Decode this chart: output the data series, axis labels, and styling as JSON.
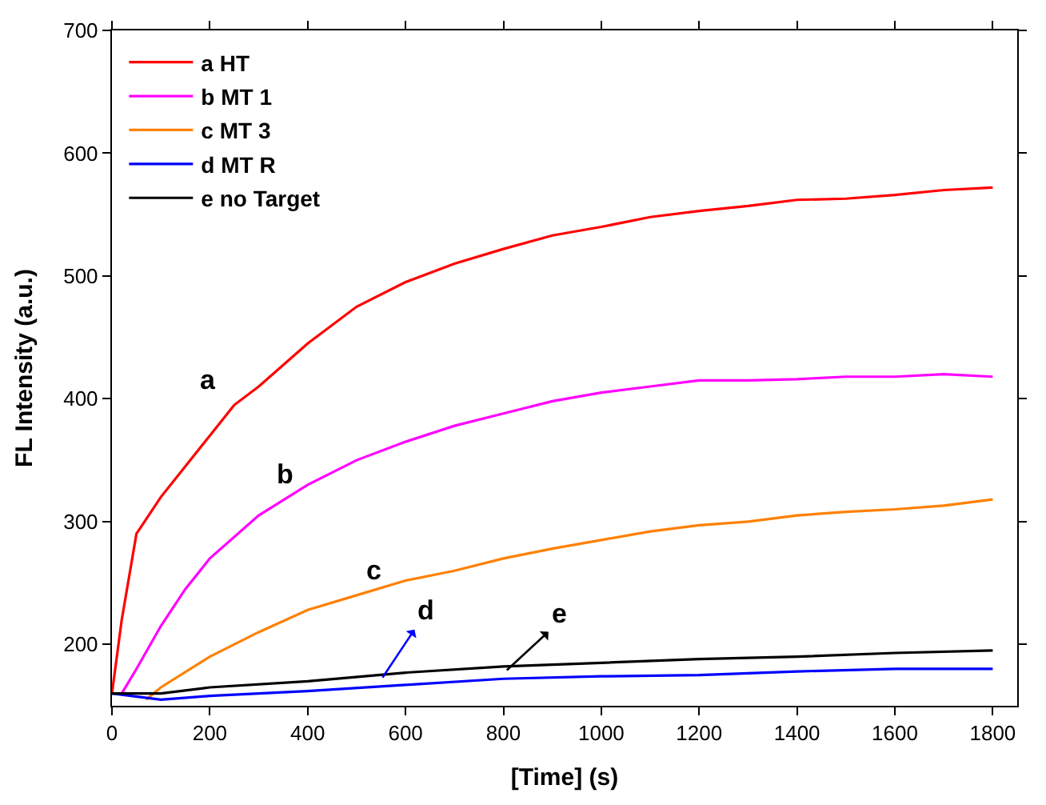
{
  "chart_data": {
    "type": "line",
    "xlabel": "[Time] (s)",
    "ylabel": "FL Intensity (a.u.)",
    "xlim": [
      0,
      1850
    ],
    "xticks": [
      0,
      200,
      400,
      600,
      800,
      1000,
      1200,
      1400,
      1600,
      1800
    ],
    "ylim": [
      150,
      700
    ],
    "yticks": [
      200,
      300,
      400,
      500,
      600,
      700
    ],
    "legend": "top left",
    "marker": "none",
    "line_style": "solid",
    "series": [
      {
        "name": "a HT",
        "color": "#ff0000",
        "x": [
          0,
          20,
          50,
          100,
          150,
          200,
          250,
          300,
          400,
          500,
          600,
          700,
          800,
          900,
          1000,
          1100,
          1200,
          1300,
          1400,
          1500,
          1600,
          1700,
          1800
        ],
        "values": [
          160,
          220,
          290,
          320,
          345,
          370,
          395,
          410,
          445,
          475,
          495,
          510,
          522,
          533,
          540,
          548,
          553,
          557,
          562,
          563,
          566,
          570,
          572
        ]
      },
      {
        "name": "b MT 1",
        "color": "#ff00ff",
        "x": [
          20,
          50,
          100,
          150,
          200,
          300,
          400,
          500,
          600,
          700,
          800,
          900,
          1000,
          1100,
          1200,
          1300,
          1400,
          1500,
          1600,
          1700,
          1800
        ],
        "values": [
          160,
          180,
          215,
          245,
          270,
          305,
          330,
          350,
          365,
          378,
          388,
          398,
          405,
          410,
          415,
          415,
          416,
          418,
          418,
          420,
          418
        ]
      },
      {
        "name": "c MT 3",
        "color": "#ff8000",
        "x": [
          70,
          100,
          200,
          300,
          400,
          500,
          600,
          700,
          800,
          900,
          1000,
          1100,
          1200,
          1300,
          1400,
          1500,
          1600,
          1700,
          1800
        ],
        "values": [
          155,
          165,
          190,
          210,
          228,
          240,
          252,
          260,
          270,
          278,
          285,
          292,
          297,
          300,
          305,
          308,
          310,
          313,
          318
        ]
      },
      {
        "name": "d MT R",
        "color": "#0000ff",
        "x": [
          0,
          100,
          200,
          400,
          600,
          800,
          1000,
          1200,
          1400,
          1600,
          1800
        ],
        "values": [
          160,
          155,
          158,
          162,
          167,
          172,
          174,
          175,
          178,
          180,
          180
        ]
      },
      {
        "name": "e no Target",
        "color": "#000000",
        "x": [
          0,
          100,
          200,
          400,
          600,
          800,
          1000,
          1200,
          1400,
          1600,
          1800
        ],
        "values": [
          160,
          160,
          165,
          170,
          177,
          182,
          185,
          188,
          190,
          193,
          195
        ]
      }
    ],
    "annotations": [
      {
        "text": "a",
        "x": 250,
        "y": 395
      },
      {
        "text": "b",
        "x": 400,
        "y": 330
      },
      {
        "text": "c",
        "x": 600,
        "y": 252
      },
      {
        "text": "d",
        "x": 553,
        "y": 173
      },
      {
        "text": "e",
        "x": 807,
        "y": 179
      }
    ]
  }
}
